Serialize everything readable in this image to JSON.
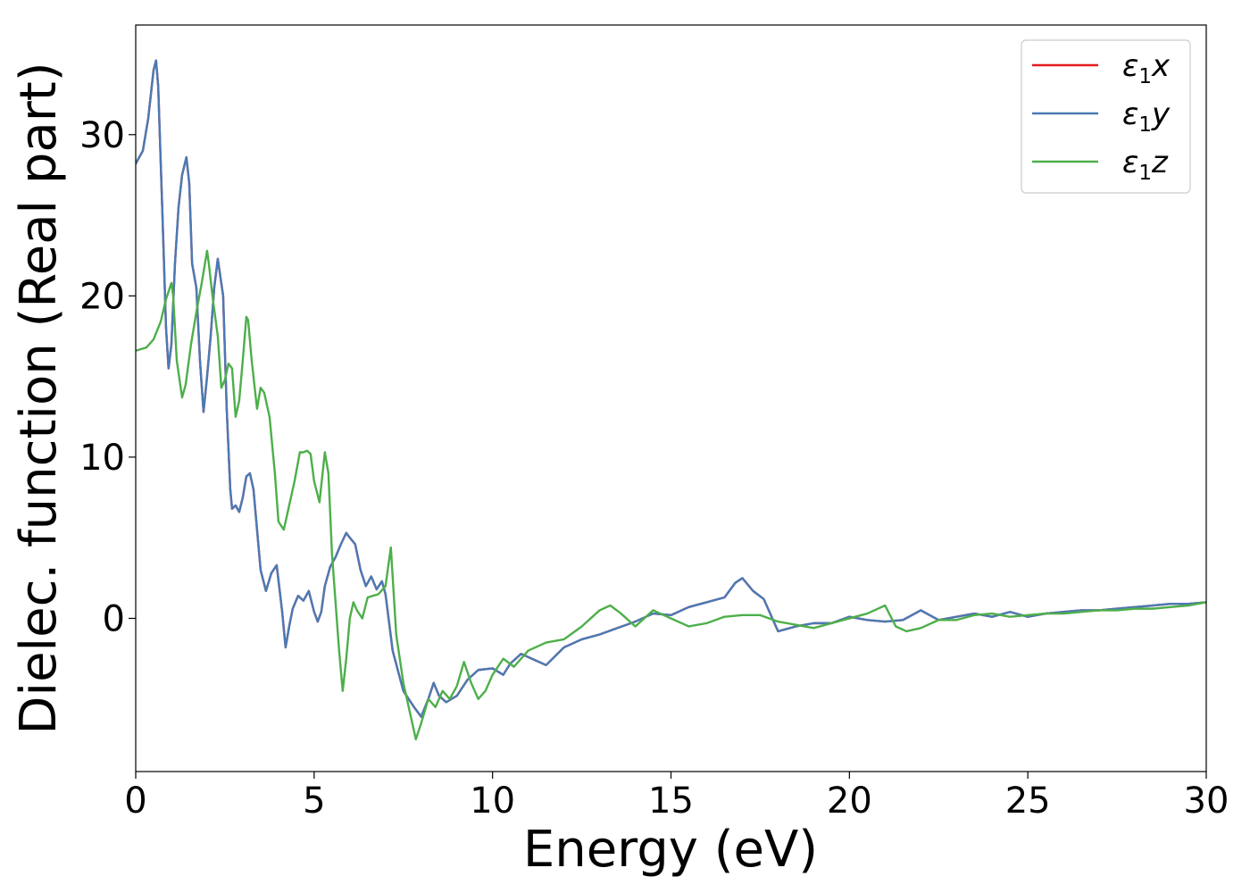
{
  "chart_data": {
    "type": "line",
    "title": "",
    "xlabel": "Energy (eV)",
    "ylabel": "Dielec. function (Real part)",
    "xlim": [
      0,
      30
    ],
    "ylim": [
      -9.5,
      36.8
    ],
    "xticks": [
      0,
      5,
      10,
      15,
      20,
      25,
      30
    ],
    "yticks": [
      0,
      10,
      20,
      30
    ],
    "grid": false,
    "legend_position": "top-right",
    "series": [
      {
        "name": "ε₁x",
        "legend_main": "ε",
        "legend_sub": "1",
        "legend_suffix": "x",
        "color": "#e41a1c",
        "x": [
          0,
          0.2,
          0.35,
          0.5,
          0.57,
          0.63,
          0.75,
          0.85,
          0.92,
          1.0,
          1.1,
          1.2,
          1.3,
          1.42,
          1.5,
          1.58,
          1.7,
          1.8,
          1.9,
          2.0,
          2.1,
          2.2,
          2.3,
          2.45,
          2.55,
          2.65,
          2.7,
          2.8,
          2.9,
          3.0,
          3.1,
          3.2,
          3.3,
          3.4,
          3.5,
          3.65,
          3.8,
          3.95,
          4.1,
          4.2,
          4.3,
          4.4,
          4.55,
          4.7,
          4.85,
          5.0,
          5.1,
          5.2,
          5.3,
          5.45,
          5.6,
          5.75,
          5.9,
          6.0,
          6.15,
          6.3,
          6.45,
          6.6,
          6.75,
          6.9,
          7.0,
          7.2,
          7.5,
          7.8,
          8.0,
          8.2,
          8.35,
          8.5,
          8.7,
          9.0,
          9.3,
          9.6,
          10.0,
          10.3,
          10.5,
          10.8,
          11.1,
          11.5,
          12.0,
          12.5,
          13.0,
          13.5,
          14.0,
          14.5,
          15.0,
          15.5,
          16.0,
          16.5,
          16.8,
          17.0,
          17.3,
          17.6,
          18.0,
          18.5,
          19.0,
          19.5,
          20.0,
          20.5,
          21.0,
          21.5,
          22.0,
          22.5,
          23.0,
          23.5,
          24.0,
          24.5,
          25.0,
          25.5,
          26.0,
          26.5,
          27.0,
          27.5,
          28.0,
          28.5,
          29.0,
          29.5,
          30.0
        ],
        "y": [
          28.2,
          29.0,
          31.0,
          34.0,
          34.6,
          33.0,
          25.0,
          18.0,
          15.5,
          17.0,
          22.0,
          25.5,
          27.5,
          28.6,
          27.0,
          22.0,
          20.5,
          16.0,
          12.8,
          15.0,
          17.5,
          20.5,
          22.3,
          20.0,
          13.0,
          8.0,
          6.8,
          7.0,
          6.6,
          7.5,
          8.8,
          9.0,
          8.0,
          5.5,
          3.0,
          1.7,
          2.8,
          3.3,
          0.5,
          -1.8,
          -0.5,
          0.6,
          1.4,
          1.1,
          1.7,
          0.4,
          -0.2,
          0.4,
          2.0,
          3.2,
          3.8,
          4.6,
          5.3,
          5.0,
          4.6,
          3.0,
          2.0,
          2.6,
          1.8,
          2.3,
          1.5,
          -2.0,
          -4.5,
          -5.5,
          -6.1,
          -5.0,
          -4.0,
          -4.8,
          -5.2,
          -4.8,
          -3.8,
          -3.2,
          -3.1,
          -3.5,
          -2.8,
          -2.2,
          -2.5,
          -2.9,
          -1.8,
          -1.3,
          -1.0,
          -0.6,
          -0.2,
          0.3,
          0.2,
          0.7,
          1.0,
          1.3,
          2.2,
          2.5,
          1.7,
          1.2,
          -0.8,
          -0.5,
          -0.3,
          -0.3,
          0.1,
          -0.1,
          -0.2,
          -0.1,
          0.5,
          -0.1,
          0.1,
          0.3,
          0.1,
          0.4,
          0.1,
          0.3,
          0.4,
          0.5,
          0.5,
          0.6,
          0.7,
          0.8,
          0.9,
          0.9,
          1.0
        ]
      },
      {
        "name": "ε₁y",
        "legend_main": "ε",
        "legend_sub": "1",
        "legend_suffix": "y",
        "color": "#4a7ab5",
        "x": [
          0,
          0.2,
          0.35,
          0.5,
          0.57,
          0.63,
          0.75,
          0.85,
          0.92,
          1.0,
          1.1,
          1.2,
          1.3,
          1.42,
          1.5,
          1.58,
          1.7,
          1.8,
          1.9,
          2.0,
          2.1,
          2.2,
          2.3,
          2.45,
          2.55,
          2.65,
          2.7,
          2.8,
          2.9,
          3.0,
          3.1,
          3.2,
          3.3,
          3.4,
          3.5,
          3.65,
          3.8,
          3.95,
          4.1,
          4.2,
          4.3,
          4.4,
          4.55,
          4.7,
          4.85,
          5.0,
          5.1,
          5.2,
          5.3,
          5.45,
          5.6,
          5.75,
          5.9,
          6.0,
          6.15,
          6.3,
          6.45,
          6.6,
          6.75,
          6.9,
          7.0,
          7.2,
          7.5,
          7.8,
          8.0,
          8.2,
          8.35,
          8.5,
          8.7,
          9.0,
          9.3,
          9.6,
          10.0,
          10.3,
          10.5,
          10.8,
          11.1,
          11.5,
          12.0,
          12.5,
          13.0,
          13.5,
          14.0,
          14.5,
          15.0,
          15.5,
          16.0,
          16.5,
          16.8,
          17.0,
          17.3,
          17.6,
          18.0,
          18.5,
          19.0,
          19.5,
          20.0,
          20.5,
          21.0,
          21.5,
          22.0,
          22.5,
          23.0,
          23.5,
          24.0,
          24.5,
          25.0,
          25.5,
          26.0,
          26.5,
          27.0,
          27.5,
          28.0,
          28.5,
          29.0,
          29.5,
          30.0
        ],
        "y": [
          28.2,
          29.0,
          31.0,
          34.0,
          34.6,
          33.0,
          25.0,
          18.0,
          15.5,
          17.0,
          22.0,
          25.5,
          27.5,
          28.6,
          27.0,
          22.0,
          20.5,
          16.0,
          12.8,
          15.0,
          17.5,
          20.5,
          22.3,
          20.0,
          13.0,
          8.0,
          6.8,
          7.0,
          6.6,
          7.5,
          8.8,
          9.0,
          8.0,
          5.5,
          3.0,
          1.7,
          2.8,
          3.3,
          0.5,
          -1.8,
          -0.5,
          0.6,
          1.4,
          1.1,
          1.7,
          0.4,
          -0.2,
          0.4,
          2.0,
          3.2,
          3.8,
          4.6,
          5.3,
          5.0,
          4.6,
          3.0,
          2.0,
          2.6,
          1.8,
          2.3,
          1.5,
          -2.0,
          -4.5,
          -5.5,
          -6.1,
          -5.0,
          -4.0,
          -4.8,
          -5.2,
          -4.8,
          -3.8,
          -3.2,
          -3.1,
          -3.5,
          -2.8,
          -2.2,
          -2.5,
          -2.9,
          -1.8,
          -1.3,
          -1.0,
          -0.6,
          -0.2,
          0.3,
          0.2,
          0.7,
          1.0,
          1.3,
          2.2,
          2.5,
          1.7,
          1.2,
          -0.8,
          -0.5,
          -0.3,
          -0.3,
          0.1,
          -0.1,
          -0.2,
          -0.1,
          0.5,
          -0.1,
          0.1,
          0.3,
          0.1,
          0.4,
          0.1,
          0.3,
          0.4,
          0.5,
          0.5,
          0.6,
          0.7,
          0.8,
          0.9,
          0.9,
          1.0
        ]
      },
      {
        "name": "ε₁z",
        "legend_main": "ε",
        "legend_sub": "1",
        "legend_suffix": "z",
        "color": "#4daf4a",
        "x": [
          0,
          0.3,
          0.5,
          0.7,
          0.85,
          1.0,
          1.05,
          1.15,
          1.3,
          1.4,
          1.55,
          1.7,
          1.85,
          2.0,
          2.05,
          2.15,
          2.3,
          2.4,
          2.5,
          2.6,
          2.7,
          2.8,
          2.9,
          3.0,
          3.1,
          3.15,
          3.25,
          3.4,
          3.5,
          3.6,
          3.75,
          3.9,
          4.0,
          4.15,
          4.3,
          4.45,
          4.6,
          4.7,
          4.8,
          4.9,
          5.0,
          5.15,
          5.3,
          5.4,
          5.5,
          5.6,
          5.7,
          5.8,
          5.9,
          6.0,
          6.1,
          6.2,
          6.35,
          6.5,
          6.65,
          6.8,
          7.0,
          7.15,
          7.3,
          7.5,
          7.7,
          7.85,
          8.0,
          8.2,
          8.4,
          8.6,
          8.8,
          9.0,
          9.2,
          9.4,
          9.6,
          9.8,
          10.0,
          10.3,
          10.6,
          11.0,
          11.5,
          12.0,
          12.5,
          13.0,
          13.3,
          13.6,
          14.0,
          14.5,
          15.0,
          15.5,
          16.0,
          16.5,
          17.0,
          17.5,
          18.0,
          18.5,
          19.0,
          19.5,
          20.0,
          20.5,
          20.7,
          21.0,
          21.3,
          21.6,
          22.0,
          22.5,
          23.0,
          23.5,
          24.0,
          24.5,
          25.0,
          25.5,
          26.0,
          26.5,
          27.0,
          27.5,
          28.0,
          28.5,
          29.0,
          29.5,
          30.0
        ],
        "y": [
          16.6,
          16.8,
          17.3,
          18.4,
          19.8,
          20.8,
          20.0,
          16.0,
          13.7,
          14.5,
          17.0,
          19.0,
          20.8,
          22.8,
          22.0,
          20.0,
          17.5,
          14.3,
          14.8,
          15.8,
          15.5,
          12.5,
          13.5,
          16.0,
          18.7,
          18.5,
          16.0,
          13.0,
          14.3,
          14.0,
          12.5,
          9.0,
          6.0,
          5.5,
          7.0,
          8.5,
          10.3,
          10.3,
          10.4,
          10.2,
          8.5,
          7.2,
          10.3,
          9.0,
          4.0,
          1.0,
          -2.0,
          -4.5,
          -2.5,
          0.0,
          1.0,
          0.5,
          0.0,
          1.3,
          1.4,
          1.5,
          2.0,
          4.4,
          -1.0,
          -4.0,
          -6.0,
          -7.5,
          -6.5,
          -5.0,
          -5.5,
          -4.5,
          -5.0,
          -4.2,
          -2.7,
          -4.0,
          -5.0,
          -4.5,
          -3.5,
          -2.5,
          -3.0,
          -2.0,
          -1.5,
          -1.3,
          -0.5,
          0.5,
          0.8,
          0.3,
          -0.5,
          0.5,
          0.0,
          -0.5,
          -0.3,
          0.1,
          0.2,
          0.2,
          -0.2,
          -0.4,
          -0.6,
          -0.3,
          0.0,
          0.3,
          0.5,
          0.8,
          -0.5,
          -0.8,
          -0.6,
          -0.1,
          -0.1,
          0.2,
          0.3,
          0.1,
          0.2,
          0.3,
          0.3,
          0.4,
          0.5,
          0.5,
          0.6,
          0.6,
          0.7,
          0.8,
          1.0
        ]
      }
    ]
  }
}
